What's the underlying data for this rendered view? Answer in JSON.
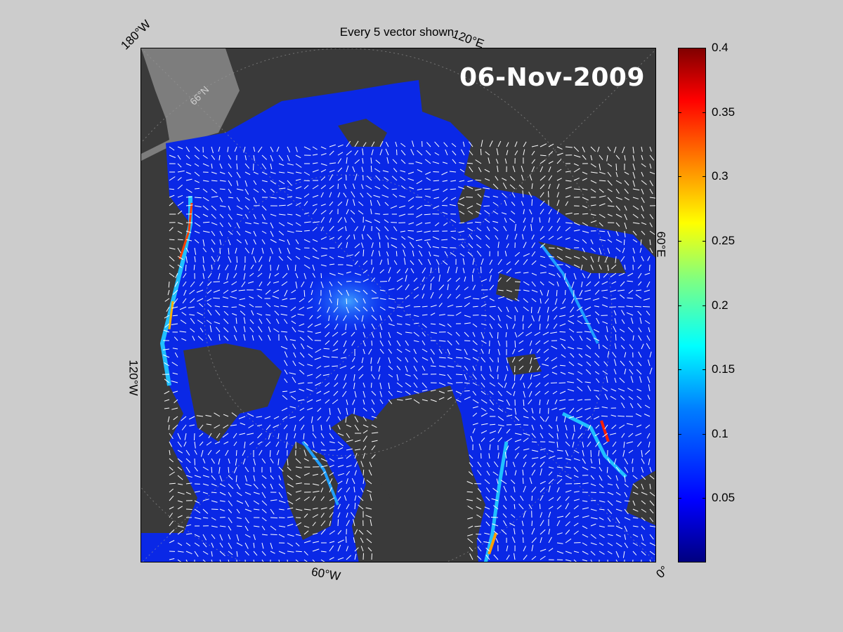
{
  "title": "Every 5 vector shown",
  "date_stamp": "06-Nov-2009",
  "lon_labels": {
    "top_left": "180°W",
    "top_right": "120°E",
    "right": "60°E",
    "bottom_right": "0°",
    "bottom": "60°W",
    "left": "120°W"
  },
  "lat_labels": {
    "upper": "66°N"
  },
  "colorbar": {
    "min": 0,
    "max": 0.4,
    "ticks": [
      "0.4",
      "0.35",
      "0.3",
      "0.25",
      "0.2",
      "0.15",
      "0.1",
      "0.05"
    ],
    "colormap": "jet"
  },
  "colors": {
    "background": "#cccccc",
    "land": "#3a3a3a",
    "land_light": "#808080",
    "ice_low": "#0000ff",
    "vectors": "#ffffff"
  }
}
